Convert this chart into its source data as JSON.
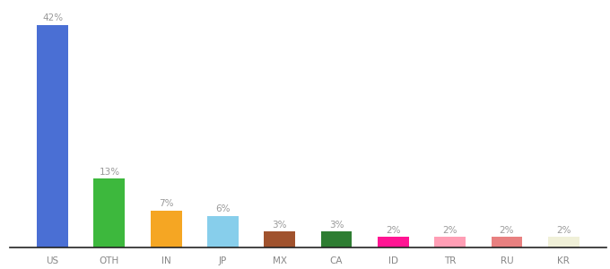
{
  "categories": [
    "US",
    "OTH",
    "IN",
    "JP",
    "MX",
    "CA",
    "ID",
    "TR",
    "RU",
    "KR"
  ],
  "values": [
    42,
    13,
    7,
    6,
    3,
    3,
    2,
    2,
    2,
    2
  ],
  "bar_colors": [
    "#4a6fd4",
    "#3db83d",
    "#f5a623",
    "#87ceeb",
    "#a0522d",
    "#2e7d32",
    "#ff1493",
    "#ff9eb5",
    "#e88080",
    "#f0f0d8"
  ],
  "ylim": [
    0,
    46
  ],
  "label_fontsize": 7.5,
  "tick_fontsize": 7.5,
  "label_color": "#999999",
  "tick_color": "#888888",
  "bar_width": 0.55,
  "bottom_spine_color": "#222222",
  "background_color": "#ffffff"
}
